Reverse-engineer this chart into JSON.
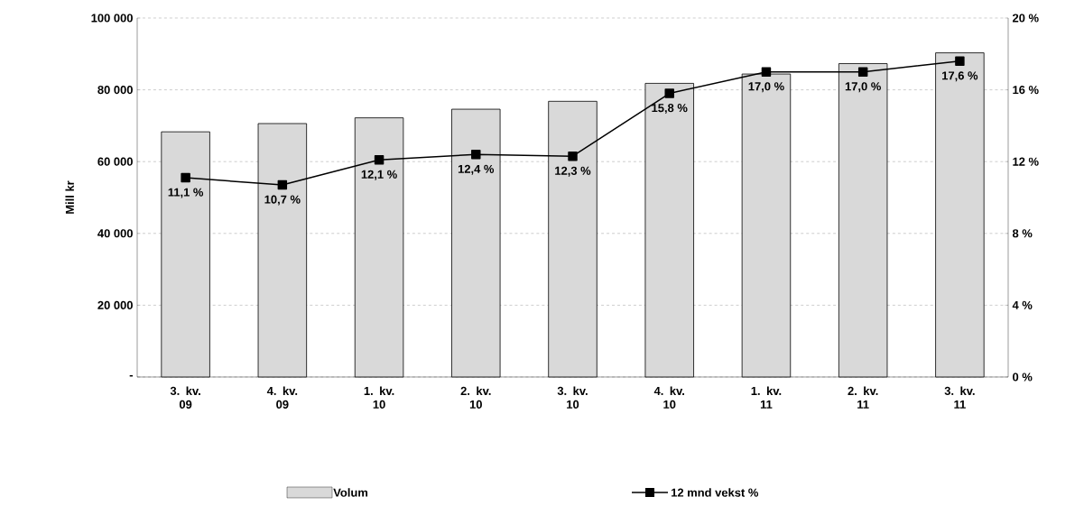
{
  "chart_data": {
    "type": "bar",
    "ylabel": "Mill kr",
    "categories": [
      "3. kv. 09",
      "4. kv. 09",
      "1. kv. 10",
      "2. kv. 10",
      "3. kv. 10",
      "4. kv. 10",
      "1. kv. 11",
      "2. kv. 11",
      "3. kv. 11"
    ],
    "series": [
      {
        "name": "Volum",
        "color": "#d9d9d9",
        "values": [
          68300,
          70600,
          72200,
          74600,
          76800,
          81800,
          84400,
          87300,
          90300
        ]
      },
      {
        "name": "12 mnd vekst %",
        "type": "line",
        "axis": "y2",
        "color": "#000000",
        "marker": "square",
        "values": [
          11.1,
          10.7,
          12.1,
          12.4,
          12.3,
          15.8,
          17.0,
          17.0,
          17.6
        ],
        "value_labels": [
          "11,1 %",
          "10,7 %",
          "12,1 %",
          "12,4 %",
          "12,3 %",
          "15,8 %",
          "17,0 %",
          "17,0 %",
          "17,6 %"
        ]
      }
    ],
    "ylim": [
      0,
      100000
    ],
    "yticks": [
      {
        "value": 0,
        "label": "-"
      },
      {
        "value": 20000,
        "label": "20 000"
      },
      {
        "value": 40000,
        "label": "40 000"
      },
      {
        "value": 60000,
        "label": "60 000"
      },
      {
        "value": 80000,
        "label": "80 000"
      },
      {
        "value": 100000,
        "label": "100 000"
      }
    ],
    "y2lim": [
      0,
      20
    ],
    "y2ticks": [
      {
        "value": 0,
        "label": "0 %"
      },
      {
        "value": 4,
        "label": "4 %"
      },
      {
        "value": 8,
        "label": "8 %"
      },
      {
        "value": 12,
        "label": "12 %"
      },
      {
        "value": 16,
        "label": "16 %"
      },
      {
        "value": 20,
        "label": "20 %"
      }
    ],
    "grid": "y",
    "legend": "bottom"
  }
}
